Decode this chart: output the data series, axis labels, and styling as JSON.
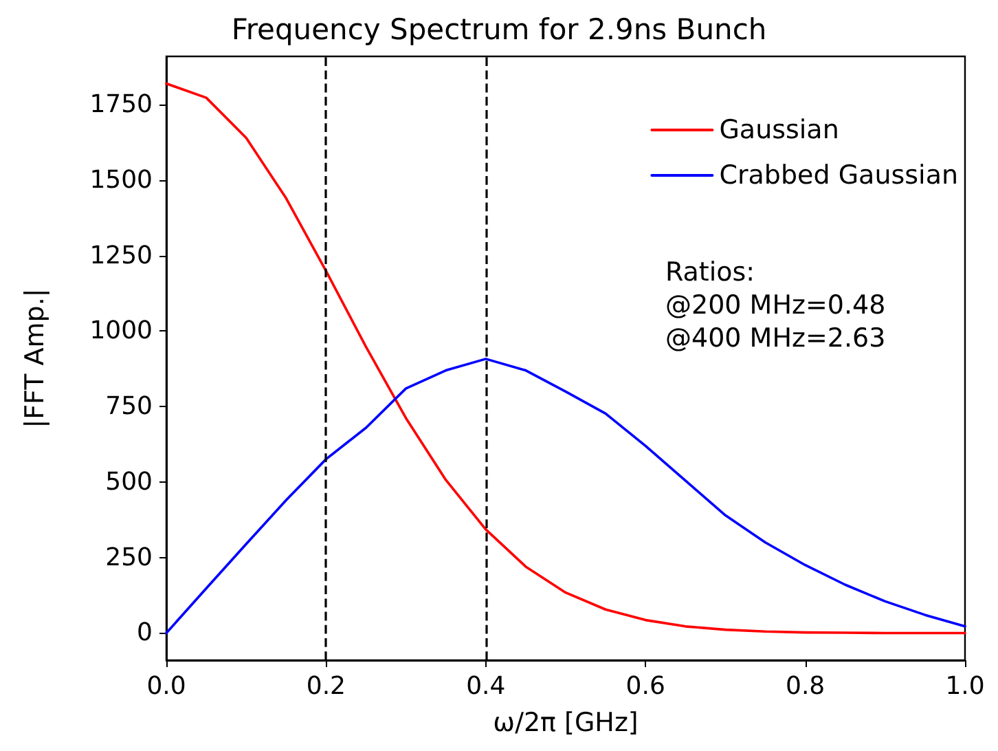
{
  "chart_data": {
    "type": "line",
    "title": "Frequency Spectrum for 2.9ns Bunch",
    "xlabel": "ω/2π [GHz]",
    "ylabel": "|FFT Amp.|",
    "x": [
      0,
      0.05,
      0.1,
      0.15,
      0.2,
      0.25,
      0.3,
      0.35,
      0.4,
      0.45,
      0.5,
      0.55,
      0.6,
      0.65,
      0.7,
      0.75,
      0.8,
      0.85,
      0.9,
      0.95,
      1.0
    ],
    "series": [
      {
        "name": "Gaussian",
        "color": "#ff0000",
        "values": [
          1820,
          1773,
          1640,
          1440,
          1199,
          948,
          712,
          507,
          343,
          220,
          134,
          78,
          43,
          22,
          11,
          5,
          2,
          1,
          0,
          0,
          0
        ]
      },
      {
        "name": "Crabbed Gaussian",
        "color": "#0000ff",
        "values": [
          0,
          148,
          295,
          440,
          576,
          680,
          810,
          870,
          908,
          870,
          800,
          727,
          620,
          505,
          390,
          300,
          225,
          160,
          105,
          60,
          22
        ]
      }
    ],
    "xlim": [
      0,
      1
    ],
    "ylim": [
      -90,
      1910
    ],
    "xticks": [
      {
        "value": 0,
        "label": "0.0"
      },
      0.2,
      0.4,
      0.6,
      0.8,
      {
        "value": 1,
        "label": "1.0"
      }
    ],
    "yticks": [
      0,
      250,
      500,
      750,
      1000,
      1250,
      1500,
      1750
    ],
    "ref_lines": [
      {
        "axis": "x",
        "value": 0.2,
        "color": "#000000",
        "line_style": "dashed"
      },
      {
        "axis": "x",
        "value": 0.4,
        "color": "#000000",
        "line_style": "dashed"
      }
    ],
    "annotations": [
      "Ratios:\n@200 MHz=0.48\n@400 MHz=2.63"
    ],
    "legend": "top right",
    "grid": false,
    "marker": "none",
    "line_style": "solid"
  }
}
